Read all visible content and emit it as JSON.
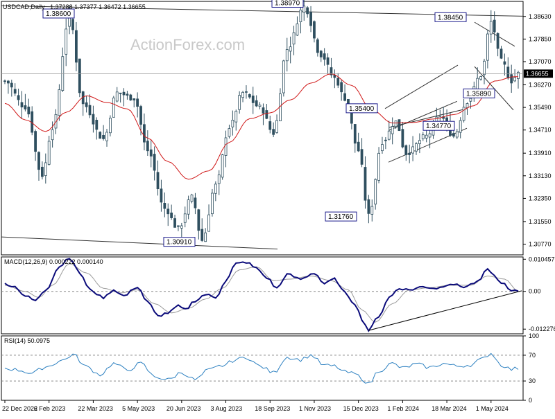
{
  "header": {
    "symbol": "USDCAD,Daily",
    "ohlc": "1.37288 1.37377 1.36472 1.36655"
  },
  "watermark": "ActionForex.com",
  "colors": {
    "background": "#ffffff",
    "candles": "#2f4f5f",
    "ma": "#d01818",
    "macd": "#0a0a7a",
    "signal": "#9a9a9a",
    "rsi": "#2a7fc0",
    "label_border": "#1a1a8a"
  },
  "chart_data": [
    {
      "type": "candlestick",
      "title": "USDCAD,Daily",
      "ylim": [
        1.304,
        1.3915
      ],
      "y_ticks": [
        "1.38630",
        "1.37850",
        "1.37070",
        "1.36270",
        "1.35490",
        "1.34710",
        "1.33910",
        "1.33130",
        "1.32350",
        "1.31550",
        "1.30770"
      ],
      "x_tick_labels": [
        "22 Dec 2022",
        "6 Feb 2023",
        "22 Mar 2023",
        "5 May 2023",
        "20 Jun 2023",
        "3 Aug 2023",
        "18 Sep 2023",
        "1 Nov 2023",
        "15 Dec 2023",
        "1 Feb 2024",
        "18 Mar 2024",
        "1 May 2024"
      ],
      "last_price": "1.36655",
      "moving_average_anchors": [
        [
          0,
          1.3563
        ],
        [
          6,
          1.3506
        ],
        [
          12,
          1.3466
        ],
        [
          18,
          1.3532
        ],
        [
          24,
          1.3589
        ],
        [
          30,
          1.3566
        ],
        [
          36,
          1.3544
        ],
        [
          42,
          1.3443
        ],
        [
          48,
          1.3362
        ],
        [
          54,
          1.3301
        ],
        [
          60,
          1.333
        ],
        [
          66,
          1.3428
        ],
        [
          72,
          1.351
        ],
        [
          78,
          1.353
        ],
        [
          84,
          1.3575
        ],
        [
          90,
          1.3633
        ],
        [
          96,
          1.3665
        ],
        [
          102,
          1.3625
        ],
        [
          108,
          1.354
        ],
        [
          114,
          1.3495
        ],
        [
          120,
          1.3497
        ],
        [
          126,
          1.3509
        ],
        [
          132,
          1.3524
        ],
        [
          138,
          1.3555
        ],
        [
          144,
          1.364
        ],
        [
          150,
          1.3655
        ]
      ],
      "price_anchors": [
        [
          0,
          1.364
        ],
        [
          6,
          1.355
        ],
        [
          11,
          1.3315
        ],
        [
          14,
          1.348
        ],
        [
          19,
          1.386
        ],
        [
          23,
          1.356
        ],
        [
          29,
          1.344
        ],
        [
          33,
          1.36
        ],
        [
          38,
          1.358
        ],
        [
          42,
          1.34
        ],
        [
          47,
          1.32
        ],
        [
          51,
          1.313
        ],
        [
          55,
          1.324
        ],
        [
          58,
          1.309
        ],
        [
          62,
          1.328
        ],
        [
          66,
          1.348
        ],
        [
          70,
          1.36
        ],
        [
          75,
          1.355
        ],
        [
          79,
          1.346
        ],
        [
          83,
          1.375
        ],
        [
          88,
          1.3897
        ],
        [
          93,
          1.373
        ],
        [
          97,
          1.365
        ],
        [
          100,
          1.358
        ],
        [
          104,
          1.34
        ],
        [
          107,
          1.3176
        ],
        [
          111,
          1.343
        ],
        [
          115,
          1.35
        ],
        [
          118,
          1.339
        ],
        [
          124,
          1.345
        ],
        [
          128,
          1.352
        ],
        [
          132,
          1.345
        ],
        [
          136,
          1.357
        ],
        [
          140,
          1.366
        ],
        [
          143,
          1.3845
        ],
        [
          146,
          1.371
        ],
        [
          149,
          1.364
        ],
        [
          151,
          1.3666
        ]
      ],
      "annotations": [
        {
          "label": "1.38600",
          "price": 1.386
        },
        {
          "label": "1.38970",
          "price": 1.3897
        },
        {
          "label": "1.38450",
          "price": 1.3845
        },
        {
          "label": "1.30910",
          "price": 1.3091
        },
        {
          "label": "1.31760",
          "price": 1.3176
        },
        {
          "label": "1.35400",
          "price": 1.354
        },
        {
          "label": "1.34770",
          "price": 1.3477
        },
        {
          "label": "1.35890",
          "price": 1.3589
        }
      ]
    },
    {
      "type": "line",
      "title": "MACD(12,26,9) 0.000222 0.000140",
      "ylim": [
        -0.0138,
        0.0112
      ],
      "y_ticks": [
        "0.010457",
        "0.00",
        "-0.012276"
      ],
      "series": [
        {
          "name": "MACD",
          "anchors": [
            [
              0,
              0.0025
            ],
            [
              3,
              0.0015
            ],
            [
              6,
              -0.0015
            ],
            [
              9,
              -0.003
            ],
            [
              12,
              0.0005
            ],
            [
              16,
              0.008
            ],
            [
              19,
              0.011
            ],
            [
              22,
              0.006
            ],
            [
              25,
              0.0005
            ],
            [
              29,
              -0.002
            ],
            [
              32,
              0.0005
            ],
            [
              35,
              -0.0015
            ],
            [
              39,
              0.0015
            ],
            [
              42,
              -0.0035
            ],
            [
              45,
              -0.008
            ],
            [
              48,
              -0.007
            ],
            [
              51,
              -0.0048
            ],
            [
              53,
              -0.006
            ],
            [
              56,
              -0.003
            ],
            [
              59,
              -0.001
            ],
            [
              62,
              -0.002
            ],
            [
              65,
              0.0035
            ],
            [
              68,
              0.009
            ],
            [
              71,
              0.0095
            ],
            [
              74,
              0.0075
            ],
            [
              77,
              0.0045
            ],
            [
              80,
              0.001
            ],
            [
              83,
              0.0055
            ],
            [
              87,
              0.004
            ],
            [
              91,
              0.006
            ],
            [
              94,
              0.0025
            ],
            [
              97,
              0.004
            ],
            [
              100,
              -0.0005
            ],
            [
              103,
              -0.004
            ],
            [
              105,
              -0.009
            ],
            [
              107,
              -0.0127
            ],
            [
              110,
              -0.008
            ],
            [
              113,
              -0.002
            ],
            [
              116,
              0.001
            ],
            [
              119,
              0.0005
            ],
            [
              123,
              0.0015
            ],
            [
              127,
              0.001
            ],
            [
              131,
              0.0025
            ],
            [
              135,
              0.0015
            ],
            [
              139,
              0.003
            ],
            [
              142,
              0.007
            ],
            [
              146,
              0.003
            ],
            [
              149,
              0.0
            ],
            [
              151,
              0.0002
            ]
          ]
        },
        {
          "name": "Signal",
          "anchors": [
            [
              0,
              0.002
            ],
            [
              6,
              0.0
            ],
            [
              10,
              -0.002
            ],
            [
              14,
              0.002
            ],
            [
              19,
              0.009
            ],
            [
              24,
              0.006
            ],
            [
              29,
              0.001
            ],
            [
              34,
              -0.0005
            ],
            [
              39,
              0.0005
            ],
            [
              44,
              -0.004
            ],
            [
              49,
              -0.007
            ],
            [
              54,
              -0.0055
            ],
            [
              59,
              -0.0025
            ],
            [
              64,
              0.001
            ],
            [
              69,
              0.007
            ],
            [
              74,
              0.008
            ],
            [
              79,
              0.0035
            ],
            [
              84,
              0.004
            ],
            [
              90,
              0.005
            ],
            [
              96,
              0.0035
            ],
            [
              101,
              0.0005
            ],
            [
              105,
              -0.006
            ],
            [
              109,
              -0.01
            ],
            [
              114,
              -0.004
            ],
            [
              119,
              0.0005
            ],
            [
              125,
              0.0012
            ],
            [
              131,
              0.002
            ],
            [
              137,
              0.002
            ],
            [
              142,
              0.005
            ],
            [
              147,
              0.004
            ],
            [
              151,
              0.0001
            ]
          ]
        }
      ],
      "trendline_note": "rising support line"
    },
    {
      "type": "line",
      "title": "RSI(14) 50.0975",
      "ylim": [
        0,
        100
      ],
      "y_ticks": [
        "100",
        "70",
        "30",
        "0"
      ],
      "levels": [
        70,
        30
      ],
      "series": [
        {
          "name": "RSI",
          "anchors": [
            [
              0,
              50
            ],
            [
              4,
              47
            ],
            [
              8,
              42
            ],
            [
              12,
              52
            ],
            [
              17,
              62
            ],
            [
              20,
              71
            ],
            [
              24,
              52
            ],
            [
              28,
              40
            ],
            [
              32,
              57
            ],
            [
              36,
              47
            ],
            [
              40,
              57
            ],
            [
              44,
              37
            ],
            [
              48,
              32
            ],
            [
              52,
              43
            ],
            [
              56,
              32
            ],
            [
              60,
              47
            ],
            [
              64,
              54
            ],
            [
              68,
              63
            ],
            [
              71,
              67
            ],
            [
              75,
              53
            ],
            [
              79,
              43
            ],
            [
              83,
              67
            ],
            [
              87,
              63
            ],
            [
              90,
              70
            ],
            [
              94,
              54
            ],
            [
              97,
              53
            ],
            [
              100,
              44
            ],
            [
              103,
              41
            ],
            [
              105,
              34
            ],
            [
              107,
              25
            ],
            [
              110,
              46
            ],
            [
              114,
              57
            ],
            [
              117,
              50
            ],
            [
              121,
              56
            ],
            [
              125,
              51
            ],
            [
              129,
              57
            ],
            [
              133,
              53
            ],
            [
              137,
              55
            ],
            [
              140,
              63
            ],
            [
              143,
              73
            ],
            [
              146,
              55
            ],
            [
              149,
              48
            ],
            [
              151,
              50
            ]
          ]
        }
      ]
    }
  ]
}
